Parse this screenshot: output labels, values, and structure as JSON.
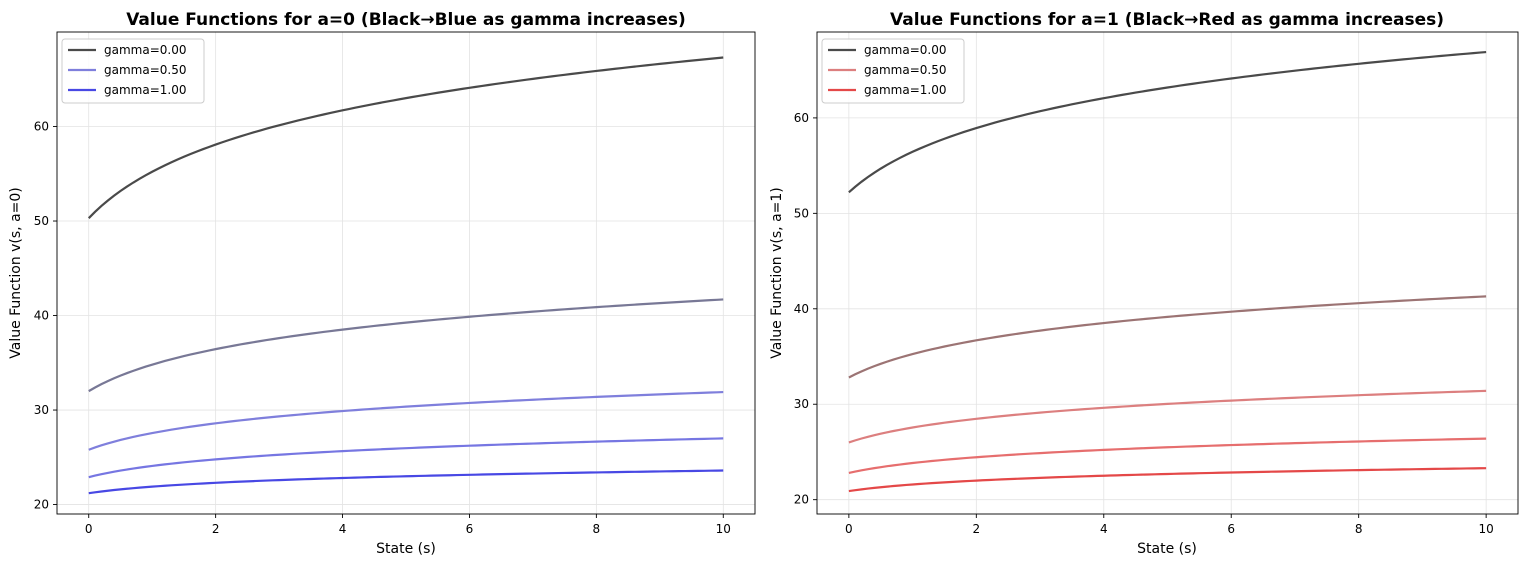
{
  "chart_data": [
    {
      "type": "line",
      "title": "Value Functions for a=0 (Black→Blue as gamma increases)",
      "xlabel": "State (s)",
      "ylabel": "Value Function v(s, a=0)",
      "xlim": [
        -0.5,
        10.5
      ],
      "ylim": [
        19,
        70
      ],
      "xticks": [
        "0",
        "2",
        "4",
        "6",
        "8",
        "10"
      ],
      "yticks": [
        "20",
        "30",
        "40",
        "50",
        "60"
      ],
      "grid": true,
      "legend_position": "upper-left",
      "legend_entries": [
        {
          "label": "gamma=0.00",
          "color": "#4a4a4a"
        },
        {
          "label": "gamma=0.50",
          "color": "#7f7fdc"
        },
        {
          "label": "gamma=1.00",
          "color": "#4848e4"
        }
      ],
      "series": [
        {
          "start": 50.3,
          "end": 67.3,
          "color": "#4a4a4a"
        },
        {
          "start": 32.0,
          "end": 41.7,
          "color": "#787896"
        },
        {
          "start": 25.8,
          "end": 31.9,
          "color": "#7f7fdc"
        },
        {
          "start": 22.9,
          "end": 27.0,
          "color": "#7676e2"
        },
        {
          "start": 21.2,
          "end": 23.6,
          "color": "#4848e4"
        }
      ]
    },
    {
      "type": "line",
      "title": "Value Functions for a=1 (Black→Red as gamma increases)",
      "xlabel": "State (s)",
      "ylabel": "Value Function v(s, a=1)",
      "xlim": [
        -0.5,
        10.5
      ],
      "ylim": [
        18.5,
        69
      ],
      "xticks": [
        "0",
        "2",
        "4",
        "6",
        "8",
        "10"
      ],
      "yticks": [
        "20",
        "30",
        "40",
        "50",
        "60"
      ],
      "grid": true,
      "legend_position": "upper-left",
      "legend_entries": [
        {
          "label": "gamma=0.00",
          "color": "#4a4a4a"
        },
        {
          "label": "gamma=0.50",
          "color": "#dc7f7f"
        },
        {
          "label": "gamma=1.00",
          "color": "#e44848"
        }
      ],
      "series": [
        {
          "start": 52.2,
          "end": 66.9,
          "color": "#4a4a4a"
        },
        {
          "start": 32.8,
          "end": 41.3,
          "color": "#9c7474"
        },
        {
          "start": 26.0,
          "end": 31.4,
          "color": "#dc7f7f"
        },
        {
          "start": 22.8,
          "end": 26.4,
          "color": "#e66e6e"
        },
        {
          "start": 20.9,
          "end": 23.3,
          "color": "#e44848"
        }
      ]
    }
  ]
}
